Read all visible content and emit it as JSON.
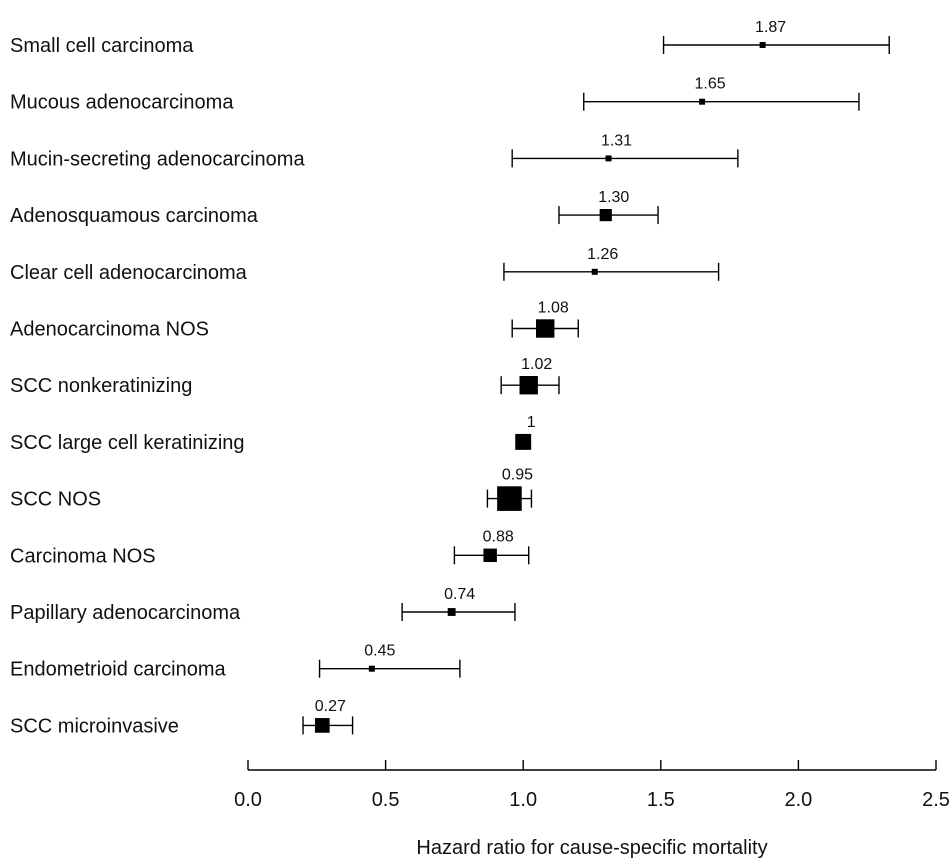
{
  "chart_data": {
    "type": "forest",
    "xlabel": "Hazard ratio for cause-specific mortality",
    "xlim": [
      0.0,
      2.5
    ],
    "x_ticks": [
      "0.0",
      "0.5",
      "1.0",
      "1.5",
      "2.0",
      "2.5"
    ],
    "grid": false,
    "rows": [
      {
        "label": "Small cell carcinoma",
        "hr": 1.87,
        "hr_label": "1.87",
        "lower": 1.51,
        "upper": 2.33,
        "marker_weight": 1
      },
      {
        "label": "Mucous adenocarcinoma",
        "hr": 1.65,
        "hr_label": "1.65",
        "lower": 1.22,
        "upper": 2.22,
        "marker_weight": 1
      },
      {
        "label": "Mucin-secreting adenocarcinoma",
        "hr": 1.31,
        "hr_label": "1.31",
        "lower": 0.96,
        "upper": 1.78,
        "marker_weight": 1
      },
      {
        "label": "Adenosquamous carcinoma",
        "hr": 1.3,
        "hr_label": "1.30",
        "lower": 1.13,
        "upper": 1.49,
        "marker_weight": 2
      },
      {
        "label": "Clear cell adenocarcinoma",
        "hr": 1.26,
        "hr_label": "1.26",
        "lower": 0.93,
        "upper": 1.71,
        "marker_weight": 1
      },
      {
        "label": "Adenocarcinoma NOS",
        "hr": 1.08,
        "hr_label": "1.08",
        "lower": 0.96,
        "upper": 1.2,
        "marker_weight": 3
      },
      {
        "label": "SCC nonkeratinizing",
        "hr": 1.02,
        "hr_label": "1.02",
        "lower": 0.92,
        "upper": 1.13,
        "marker_weight": 3
      },
      {
        "label": "SCC large cell keratinizing",
        "hr": 1.0,
        "hr_label": "1",
        "lower": null,
        "upper": null,
        "marker_weight": 2.6
      },
      {
        "label": "SCC NOS",
        "hr": 0.95,
        "hr_label": "0.95",
        "lower": 0.87,
        "upper": 1.03,
        "marker_weight": 4
      },
      {
        "label": "Carcinoma NOS",
        "hr": 0.88,
        "hr_label": "0.88",
        "lower": 0.75,
        "upper": 1.02,
        "marker_weight": 2.2
      },
      {
        "label": "Papillary adenocarcinoma",
        "hr": 0.74,
        "hr_label": "0.74",
        "lower": 0.56,
        "upper": 0.97,
        "marker_weight": 1.3
      },
      {
        "label": "Endometrioid carcinoma",
        "hr": 0.45,
        "hr_label": "0.45",
        "lower": 0.26,
        "upper": 0.77,
        "marker_weight": 1
      },
      {
        "label": "SCC microinvasive",
        "hr": 0.27,
        "hr_label": "0.27",
        "lower": 0.2,
        "upper": 0.38,
        "marker_weight": 2.4
      }
    ]
  }
}
